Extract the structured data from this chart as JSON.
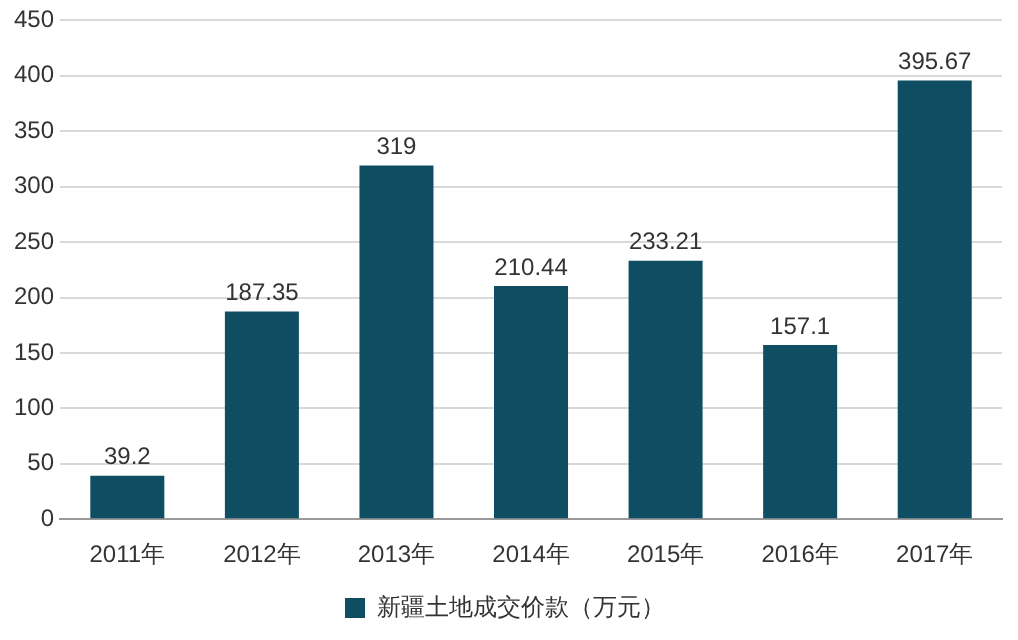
{
  "chart_data": {
    "type": "bar",
    "categories": [
      "2011年",
      "2012年",
      "2013年",
      "2014年",
      "2015年",
      "2016年",
      "2017年"
    ],
    "series": [
      {
        "name": "新疆土地成交价款（万元）",
        "color": "#0e4d62",
        "values": [
          39.2,
          187.35,
          319,
          210.44,
          233.21,
          157.1,
          395.67
        ]
      }
    ],
    "ylim": [
      0,
      450
    ],
    "yticks": [
      0,
      50,
      100,
      150,
      200,
      250,
      300,
      350,
      400,
      450
    ],
    "grid": "y",
    "legend": "bottom",
    "data_labels": true
  }
}
